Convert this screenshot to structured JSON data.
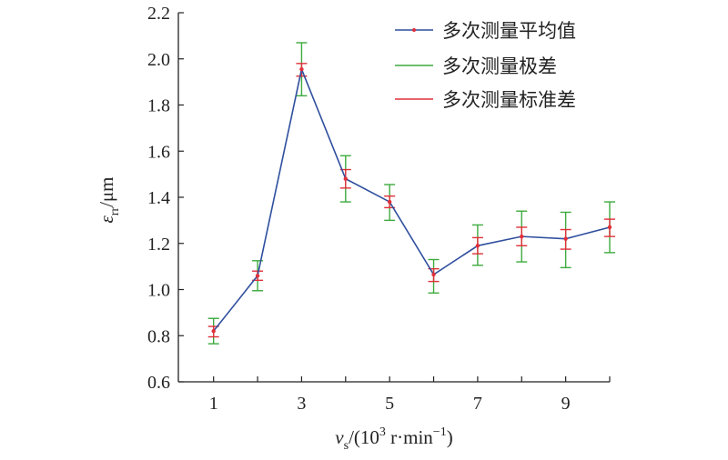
{
  "chart_data": {
    "type": "line",
    "title": "",
    "x": [
      1,
      2,
      3,
      4,
      5,
      6,
      7,
      8,
      9,
      10
    ],
    "xticks": [
      "1",
      "3",
      "5",
      "7",
      "9"
    ],
    "xlim": [
      0.2,
      10
    ],
    "ylim": [
      0.6,
      2.2
    ],
    "yticks": [
      "0.6",
      "0.8",
      "1.0",
      "1.2",
      "1.4",
      "1.6",
      "1.8",
      "2.0",
      "2.2"
    ],
    "xlabel": {
      "base": "v",
      "sub": "s",
      "mid": "/(10",
      "sup1": "3",
      "mid2": " r·min",
      "sup2": "−1",
      "end": ")"
    },
    "ylabel": {
      "base": "ε",
      "sub": "rr",
      "end": "/μm"
    },
    "grid": false,
    "legend_position": "top-right",
    "series": [
      {
        "name": "多次测量平均值",
        "color": "#2f4f9e",
        "values": [
          0.82,
          1.06,
          1.955,
          1.48,
          1.38,
          1.065,
          1.19,
          1.23,
          1.22,
          1.27
        ]
      },
      {
        "name": "多次测量极差",
        "color": "#3daa3d",
        "low": [
          0.765,
          0.995,
          1.84,
          1.38,
          1.3,
          0.985,
          1.105,
          1.12,
          1.095,
          1.16
        ],
        "high": [
          0.875,
          1.125,
          2.07,
          1.58,
          1.455,
          1.13,
          1.28,
          1.34,
          1.335,
          1.38
        ]
      },
      {
        "name": "多次测量标准差",
        "color": "#e0303a",
        "low": [
          0.795,
          1.04,
          1.925,
          1.44,
          1.355,
          1.035,
          1.155,
          1.19,
          1.175,
          1.23
        ],
        "high": [
          0.84,
          1.08,
          1.98,
          1.52,
          1.405,
          1.09,
          1.225,
          1.27,
          1.26,
          1.305
        ]
      }
    ]
  }
}
